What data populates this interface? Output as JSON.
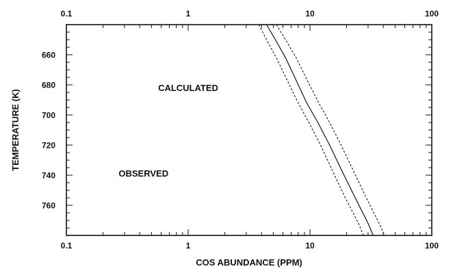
{
  "chart_data": {
    "type": "line",
    "title": "",
    "xlabel": "COS ABUNDANCE (PPM)",
    "ylabel": "TEMPERATURE (K)",
    "x_scale": "log",
    "xlim": [
      0.1,
      100
    ],
    "ylim": [
      640,
      780
    ],
    "y_inverted": true,
    "x_tick_labels": [
      "0.1",
      "1",
      "10",
      "100"
    ],
    "x_tick_values": [
      0.1,
      1,
      10,
      100
    ],
    "y_tick_labels": [
      "660",
      "680",
      "700",
      "720",
      "740",
      "760"
    ],
    "y_tick_values": [
      660,
      680,
      700,
      720,
      740,
      760
    ],
    "grid": false,
    "series": [
      {
        "style": "solid",
        "points": [
          {
            "x": 4.4,
            "y": 640
          },
          {
            "x": 5.2,
            "y": 650
          },
          {
            "x": 6.3,
            "y": 662
          },
          {
            "x": 7.7,
            "y": 677
          },
          {
            "x": 9.4,
            "y": 692
          },
          {
            "x": 11.6,
            "y": 705
          },
          {
            "x": 14.5,
            "y": 720
          },
          {
            "x": 18.5,
            "y": 738
          },
          {
            "x": 23.5,
            "y": 755
          },
          {
            "x": 30,
            "y": 772
          },
          {
            "x": 33,
            "y": 780
          }
        ]
      },
      {
        "style": "dashed",
        "points": [
          {
            "x": 3.8,
            "y": 640
          },
          {
            "x": 4.4,
            "y": 650
          },
          {
            "x": 5.3,
            "y": 662
          },
          {
            "x": 6.5,
            "y": 677
          },
          {
            "x": 8.0,
            "y": 692
          },
          {
            "x": 9.8,
            "y": 705
          },
          {
            "x": 12.2,
            "y": 720
          },
          {
            "x": 15.5,
            "y": 738
          },
          {
            "x": 19.5,
            "y": 755
          },
          {
            "x": 25,
            "y": 772
          },
          {
            "x": 27.5,
            "y": 780
          }
        ]
      },
      {
        "style": "dashed",
        "points": [
          {
            "x": 5.3,
            "y": 640
          },
          {
            "x": 6.3,
            "y": 650
          },
          {
            "x": 7.7,
            "y": 662
          },
          {
            "x": 9.5,
            "y": 677
          },
          {
            "x": 11.8,
            "y": 692
          },
          {
            "x": 14.5,
            "y": 705
          },
          {
            "x": 18,
            "y": 720
          },
          {
            "x": 23,
            "y": 738
          },
          {
            "x": 29,
            "y": 755
          },
          {
            "x": 37,
            "y": 772
          },
          {
            "x": 41,
            "y": 780
          }
        ]
      }
    ],
    "annotations": [
      {
        "text": "CALCULATED",
        "x": 1.0,
        "y": 684
      },
      {
        "text": "OBSERVED",
        "x": 0.43,
        "y": 741
      }
    ]
  }
}
